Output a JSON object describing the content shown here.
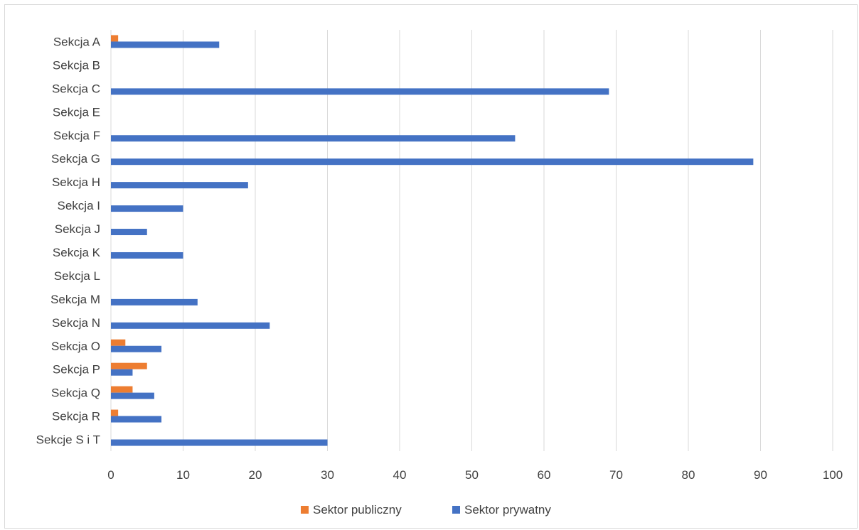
{
  "chart_data": {
    "type": "bar",
    "orientation": "horizontal",
    "categories": [
      "Sekcja A",
      "Sekcja B",
      "Sekcja C",
      "Sekcja E",
      "Sekcja F",
      "Sekcja G",
      "Sekcja H",
      "Sekcja I",
      "Sekcja J",
      "Sekcja K",
      "Sekcja L",
      "Sekcja M",
      "Sekcja N",
      "Sekcja O",
      "Sekcja P",
      "Sekcja Q",
      "Sekcja R",
      "Sekcje S i T"
    ],
    "series": [
      {
        "name": "Sektor publiczny",
        "color": "#ed7d31",
        "values": [
          1,
          0,
          0,
          0,
          0,
          0,
          0,
          0,
          0,
          0,
          0,
          0,
          0,
          2,
          5,
          3,
          1,
          0
        ]
      },
      {
        "name": "Sektor prywatny",
        "color": "#4472c4",
        "values": [
          15,
          0,
          69,
          0,
          56,
          89,
          19,
          10,
          5,
          10,
          0,
          12,
          22,
          7,
          3,
          6,
          7,
          30
        ]
      }
    ],
    "xlim": [
      0,
      100
    ],
    "xticks": [
      "0",
      "10",
      "20",
      "30",
      "40",
      "50",
      "60",
      "70",
      "80",
      "90",
      "100"
    ],
    "grid": true,
    "legend": "bottom",
    "title": "",
    "xlabel": "",
    "ylabel": ""
  }
}
